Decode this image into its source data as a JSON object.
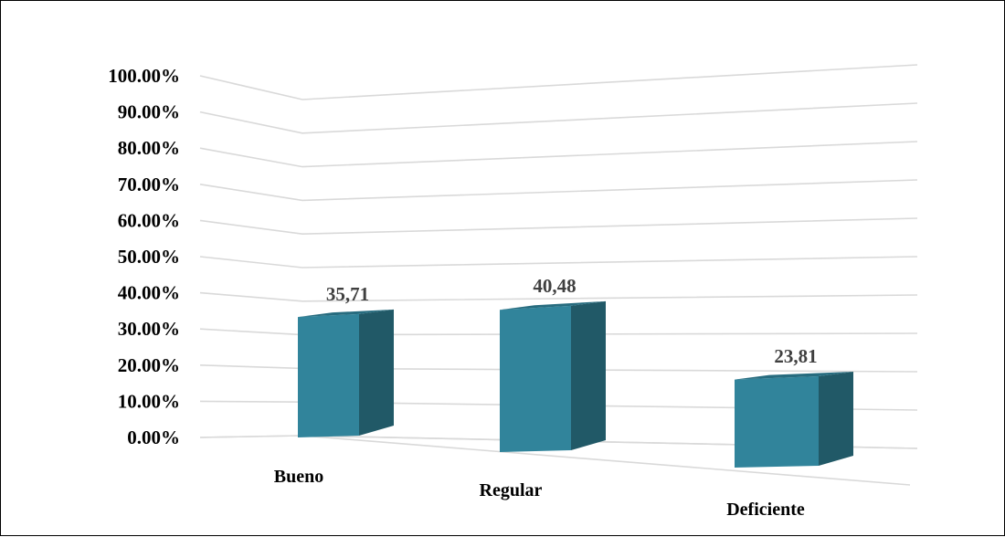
{
  "chart_data": {
    "type": "bar",
    "categories": [
      "Bueno",
      "Regular",
      "Deficiente"
    ],
    "values": [
      35.71,
      40.48,
      23.81
    ],
    "data_labels": [
      "35,71",
      "40,48",
      "23,81"
    ],
    "y_ticks": [
      "0.00%",
      "10.00%",
      "20.00%",
      "30.00%",
      "40.00%",
      "50.00%",
      "60.00%",
      "70.00%",
      "80.00%",
      "90.00%",
      "100.00%"
    ],
    "ylim": [
      0,
      100
    ],
    "grid": true,
    "legend": "none",
    "style": "3d-column",
    "colors": {
      "front": "#31849B",
      "side": "#215967",
      "top": "#276C7F",
      "grid": "#D9D9D9",
      "label": "#404040"
    }
  }
}
